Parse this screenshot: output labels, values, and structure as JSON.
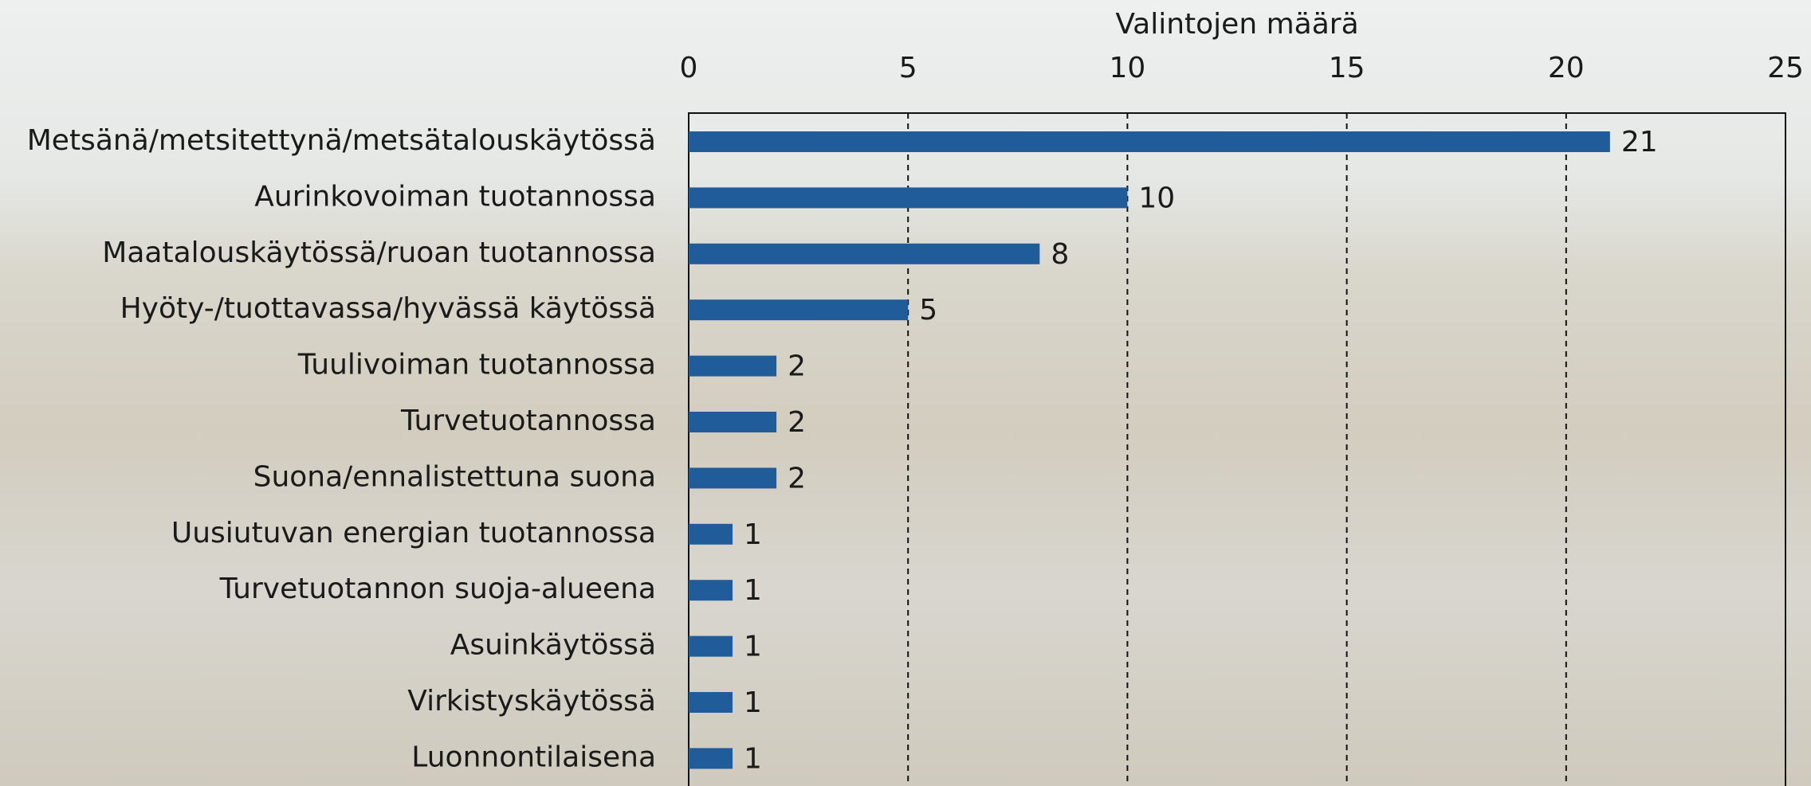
{
  "chart_data": {
    "type": "bar",
    "orientation": "horizontal",
    "x_label": "Valintojen määrä",
    "categories": [
      "Metsänä/metsitettynä/metsätalouskäytössä",
      "Aurinkovoiman tuotannossa",
      "Maatalouskäytössä/ruoan tuotannossa",
      "Hyöty-/tuottavassa/hyvässä käytössä",
      "Tuulivoiman tuotannossa",
      "Turvetuotannossa",
      "Suona/ennalistettuna suona",
      "Uusiutuvan energian tuotannossa",
      "Turvetuotannon suoja-alueena",
      "Asuinkäytössä",
      "Virkistyskäytössä",
      "Luonnontilaisena"
    ],
    "values": [
      21,
      10,
      8,
      5,
      2,
      2,
      2,
      1,
      1,
      1,
      1,
      1
    ],
    "color": "#1f5c99",
    "xlim": [
      0,
      25
    ],
    "xticks": [
      0,
      5,
      10,
      15,
      20,
      25
    ],
    "grid": true
  }
}
